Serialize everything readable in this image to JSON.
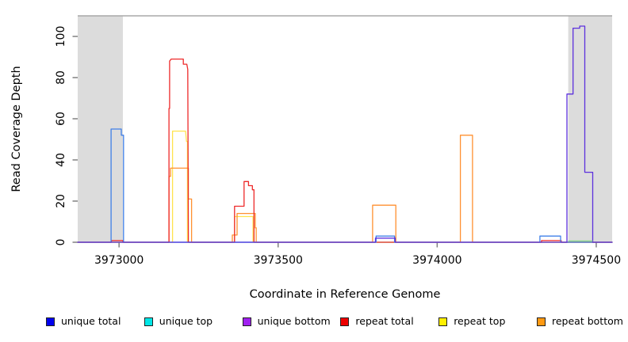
{
  "chart_data": {
    "type": "line",
    "title": "",
    "xlabel": "Coordinate in Reference Genome",
    "ylabel": "Read Coverage Depth",
    "xlim": [
      3972870,
      3974550
    ],
    "ylim": [
      0,
      110
    ],
    "xticks": [
      3973000,
      3973500,
      3974000,
      3974500
    ],
    "yticks": [
      0,
      20,
      40,
      60,
      80,
      100
    ],
    "grid": false,
    "legend_position": "bottom",
    "plot_bg": "#ffffff",
    "shaded_region_color": "#dcdcdc",
    "top_border_color": "#a8a8a8",
    "tick_color": "#808080",
    "text_color": "#000000",
    "shaded_regions": [
      {
        "name": "masked-region-left",
        "x0": 3972870,
        "x1": 3973012
      },
      {
        "name": "masked-region-right",
        "x0": 3974412,
        "x1": 3974550
      }
    ],
    "series": [
      {
        "name": "unique top",
        "line_color": "#00d0e0",
        "points": [
          [
            3972870,
            0
          ],
          [
            3974550,
            0
          ]
        ]
      },
      {
        "name": "repeat top",
        "line_color": "#ffe34d",
        "points": [
          [
            3972870,
            0
          ],
          [
            3973168,
            0
          ],
          [
            3973168,
            54
          ],
          [
            3973209,
            54
          ],
          [
            3973212,
            49
          ],
          [
            3973215,
            49
          ],
          [
            3973215,
            0
          ],
          [
            3973363,
            0
          ],
          [
            3973363,
            12.5
          ],
          [
            3973421,
            12.5
          ],
          [
            3973421,
            0
          ],
          [
            3974550,
            0
          ]
        ]
      },
      {
        "name": "repeat bottom",
        "line_color": "#ff9030",
        "points": [
          [
            3972870,
            0
          ],
          [
            3973157,
            0
          ],
          [
            3973157,
            32
          ],
          [
            3973162,
            32
          ],
          [
            3973162,
            36
          ],
          [
            3973218,
            36
          ],
          [
            3973218,
            21
          ],
          [
            3973228,
            21
          ],
          [
            3973228,
            0
          ],
          [
            3973356,
            0
          ],
          [
            3973356,
            3.5
          ],
          [
            3973371,
            3.5
          ],
          [
            3973371,
            14
          ],
          [
            3973428,
            14
          ],
          [
            3973428,
            7
          ],
          [
            3973431,
            7
          ],
          [
            3973431,
            0
          ],
          [
            3973797,
            0
          ],
          [
            3973797,
            18
          ],
          [
            3973870,
            18
          ],
          [
            3973870,
            0
          ],
          [
            3974073,
            0
          ],
          [
            3974073,
            52
          ],
          [
            3974111,
            52
          ],
          [
            3974111,
            0
          ],
          [
            3974550,
            0
          ]
        ]
      },
      {
        "name": "repeat total",
        "line_color": "#ee2a2a",
        "points": [
          [
            3972870,
            0
          ],
          [
            3972976,
            0
          ],
          [
            3972976,
            0.8
          ],
          [
            3973012,
            0.8
          ],
          [
            3973012,
            0
          ],
          [
            3973157,
            0
          ],
          [
            3973157,
            65
          ],
          [
            3973159,
            65
          ],
          [
            3973159,
            88
          ],
          [
            3973164,
            89
          ],
          [
            3973202,
            89
          ],
          [
            3973202,
            86.5
          ],
          [
            3973213,
            86.5
          ],
          [
            3973216,
            84
          ],
          [
            3973218,
            0
          ],
          [
            3973363,
            0
          ],
          [
            3973363,
            17.5
          ],
          [
            3973393,
            17.5
          ],
          [
            3973393,
            29.5
          ],
          [
            3973407,
            29.5
          ],
          [
            3973407,
            27.5
          ],
          [
            3973419,
            27.5
          ],
          [
            3973419,
            25.5
          ],
          [
            3973424,
            25.5
          ],
          [
            3973424,
            0
          ],
          [
            3974328,
            0
          ],
          [
            3974328,
            0.8
          ],
          [
            3974390,
            0.8
          ],
          [
            3974390,
            0
          ],
          [
            3974550,
            0
          ]
        ]
      },
      {
        "name": "unique total",
        "line_color": "#4080e8",
        "points": [
          [
            3972870,
            0
          ],
          [
            3972975,
            0
          ],
          [
            3972975,
            55
          ],
          [
            3973007,
            55
          ],
          [
            3973007,
            52
          ],
          [
            3973014,
            52
          ],
          [
            3973014,
            0
          ],
          [
            3973808,
            0
          ],
          [
            3973808,
            3
          ],
          [
            3973866,
            3
          ],
          [
            3973866,
            0
          ],
          [
            3974323,
            0
          ],
          [
            3974323,
            3
          ],
          [
            3974388,
            3
          ],
          [
            3974388,
            0
          ],
          [
            3974550,
            0
          ]
        ]
      },
      {
        "name": "unique bottom",
        "line_color": "#5c30dd",
        "points": [
          [
            3972870,
            0
          ],
          [
            3973806,
            0
          ],
          [
            3973806,
            2
          ],
          [
            3973868,
            2
          ],
          [
            3973868,
            0
          ],
          [
            3974408,
            0
          ],
          [
            3974408,
            72
          ],
          [
            3974427,
            72
          ],
          [
            3974427,
            104
          ],
          [
            3974448,
            104
          ],
          [
            3974448,
            105
          ],
          [
            3974464,
            105
          ],
          [
            3974464,
            34
          ],
          [
            3974489,
            34
          ],
          [
            3974489,
            0
          ],
          [
            3974550,
            0
          ]
        ]
      }
    ],
    "annotations": [
      {
        "name": "green-baseline-segment",
        "color": "#88d888",
        "points": [
          [
            3974412,
            0.6
          ],
          [
            3974489,
            0.6
          ]
        ]
      }
    ],
    "legend": [
      {
        "label": "unique total",
        "color": "#0000ee"
      },
      {
        "label": "unique top",
        "color": "#00e6e6"
      },
      {
        "label": "unique bottom",
        "color": "#a020f0"
      },
      {
        "label": "repeat total",
        "color": "#ee0000"
      },
      {
        "label": "repeat top",
        "color": "#ffef00"
      },
      {
        "label": "repeat bottom",
        "color": "#ff9912"
      }
    ]
  }
}
